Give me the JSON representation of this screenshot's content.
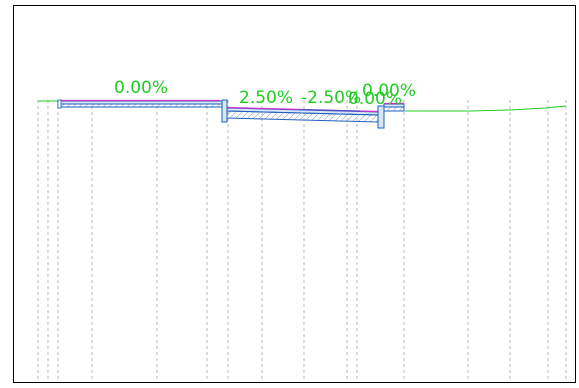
{
  "slope_labels": {
    "left_lane": "0.00%",
    "center_left": "2.50%",
    "center_right": "-2.50%",
    "right_shoulder_a": "0.00%",
    "right_shoulder_b": "0.00%"
  },
  "colors": {
    "background": "#ffffff",
    "frame": "#000000",
    "ground_line": "#22cc22",
    "slope_text": "#22cc22",
    "pavement_outline": "#1f5fbf",
    "pavement_fill": "#d8e6f5",
    "top_surface": "#cc33cc",
    "grid_dash": "#9a9a9a",
    "hatch": "#8aa0b8"
  }
}
